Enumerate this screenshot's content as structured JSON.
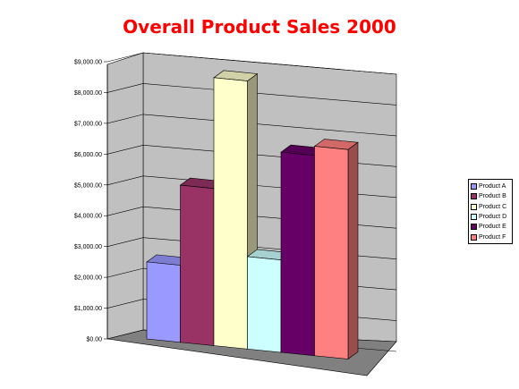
{
  "chart_data": {
    "type": "bar",
    "title": "Overall Product Sales 2000",
    "xlabel": "",
    "ylabel": "",
    "ylim": [
      0,
      9000
    ],
    "y_ticks": [
      "$0.00",
      "$1,000.00",
      "$2,000.00",
      "$3,000.00",
      "$4,000.00",
      "$5,000.00",
      "$6,000.00",
      "$7,000.00",
      "$8,000.00",
      "$9,000.00"
    ],
    "grid": true,
    "three_d": true,
    "legend_position": "right",
    "series": [
      {
        "name": "Product A",
        "value": 2500,
        "color": "#9999ff"
      },
      {
        "name": "Product B",
        "value": 5100,
        "color": "#993366"
      },
      {
        "name": "Product C",
        "value": 8700,
        "color": "#ffffcc"
      },
      {
        "name": "Product D",
        "value": 3000,
        "color": "#ccffff"
      },
      {
        "name": "Product E",
        "value": 6500,
        "color": "#660066"
      },
      {
        "name": "Product F",
        "value": 6800,
        "color": "#ff8080"
      }
    ]
  }
}
